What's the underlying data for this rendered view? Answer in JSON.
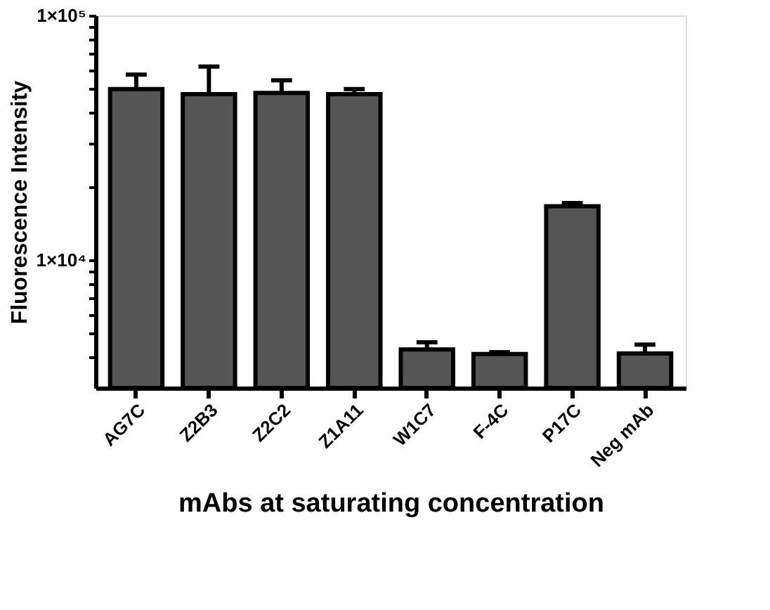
{
  "chart_data": {
    "type": "bar",
    "xlabel": "mAbs at  saturating concentration",
    "ylabel": "Fluorescence Intensity",
    "categories": [
      "AG7C",
      "Z2B3",
      "Z2C2",
      "Z1A11",
      "W1C7",
      "F-4C",
      "P17C",
      "Neg mAb"
    ],
    "values": [
      50000,
      47700,
      48200,
      47700,
      4310,
      4130,
      16600,
      4150
    ],
    "errors": [
      [
        50000,
        57300
      ],
      [
        47700,
        61800
      ],
      [
        48200,
        54300
      ],
      [
        47700,
        50000
      ],
      [
        4310,
        4610
      ],
      [
        4130,
        4200
      ],
      [
        16600,
        17100
      ],
      [
        4150,
        4510
      ]
    ],
    "color": "#555555",
    "log": true,
    "grid": false,
    "ylim": [
      3000,
      100000
    ],
    "yticks": [
      {
        "value": 4000,
        "label": null
      },
      {
        "value": 5000,
        "label": null
      },
      {
        "value": 6000,
        "label": null
      },
      {
        "value": 7000,
        "label": null
      },
      {
        "value": 8000,
        "label": null
      },
      {
        "value": 9000,
        "label": null
      },
      {
        "value": 10000,
        "label": "1×10⁴"
      },
      {
        "value": 20000,
        "label": null
      },
      {
        "value": 30000,
        "label": null
      },
      {
        "value": 40000,
        "label": null
      },
      {
        "value": 50000,
        "label": null
      },
      {
        "value": 60000,
        "label": null
      },
      {
        "value": 70000,
        "label": null
      },
      {
        "value": 80000,
        "label": null
      },
      {
        "value": 90000,
        "label": null
      },
      {
        "value": 100000,
        "label": "1×10⁵"
      }
    ]
  }
}
